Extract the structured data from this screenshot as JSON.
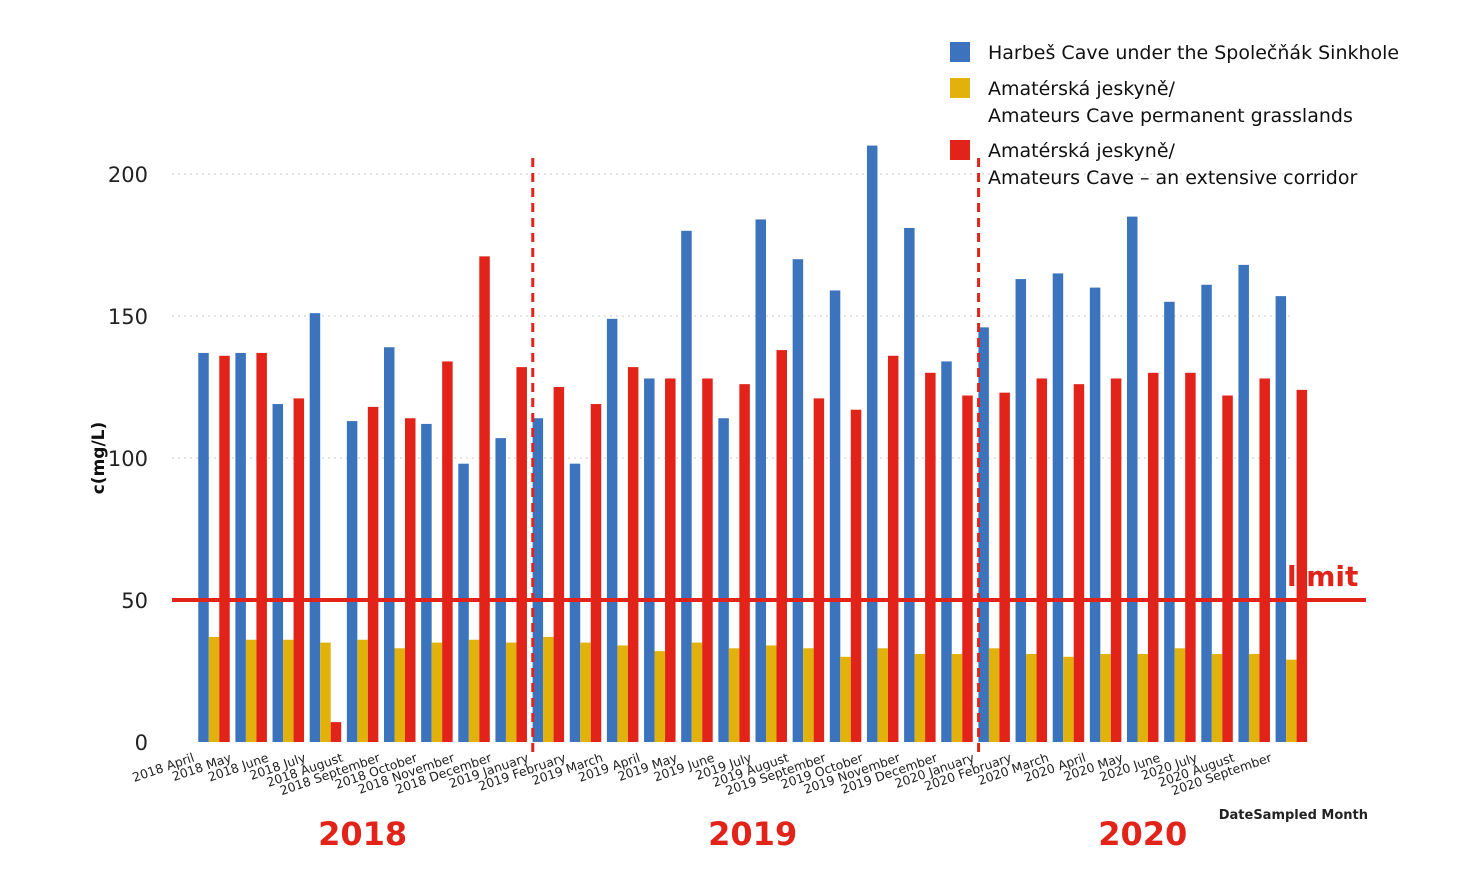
{
  "colors": {
    "harbes": "#3b74bd",
    "amateurs_grass": "#e1b20c",
    "amateurs_corridor": "#e2231a",
    "annotation": "#e2231a",
    "axis_text": "#222222",
    "grid": "#d6d6d6"
  },
  "chart_data": {
    "type": "bar",
    "title": "",
    "xlabel": "DateSampled Month",
    "ylabel": "c(mg/L)",
    "ylim": [
      0,
      215
    ],
    "yticks": [
      0,
      50,
      100,
      150,
      200
    ],
    "grid": true,
    "legend_position": "top-right",
    "categories": [
      "2018 April",
      "2018 May",
      "2018 June",
      "2018 July",
      "2018 August",
      "2018 September",
      "2018 October",
      "2018 November",
      "2018 December",
      "2019 January",
      "2019 February",
      "2019 March",
      "2019 April",
      "2019 May",
      "2019 June",
      "2019 July",
      "2019 August",
      "2019 September",
      "2019 October",
      "2019 November",
      "2019 December",
      "2020 January",
      "2020 February",
      "2020 March",
      "2020 April",
      "2020 May",
      "2020 June",
      "2020 July",
      "2020 August",
      "2020 September"
    ],
    "series": [
      {
        "name": "Harbeš Cave under the Společňák Sinkhole",
        "legend_lines": [
          "Harbeš Cave under the Společňák Sinkhole"
        ],
        "color_key": "harbes",
        "values": [
          137,
          137,
          119,
          151,
          113,
          139,
          112,
          98,
          107,
          114,
          98,
          149,
          128,
          180,
          114,
          184,
          170,
          159,
          210,
          181,
          134,
          146,
          163,
          165,
          160,
          185,
          155,
          161,
          168,
          157
        ]
      },
      {
        "name": "Amatérská jeskyně/ Amateurs Cave permanent grasslands",
        "legend_lines": [
          "Amatérská jeskyně/",
          "Amateurs Cave permanent grasslands"
        ],
        "color_key": "amateurs_grass",
        "values": [
          37,
          36,
          36,
          35,
          36,
          33,
          35,
          36,
          35,
          37,
          35,
          34,
          32,
          35,
          33,
          34,
          33,
          30,
          33,
          31,
          31,
          33,
          31,
          30,
          31,
          31,
          33,
          31,
          31,
          29
        ]
      },
      {
        "name": "Amatérská jeskyně/ Amateurs Cave – an extensive corridor",
        "legend_lines": [
          "Amatérská jeskyně/",
          "Amateurs Cave – an extensive corridor"
        ],
        "color_key": "amateurs_corridor",
        "values": [
          136,
          137,
          121,
          7,
          118,
          114,
          134,
          171,
          132,
          125,
          119,
          132,
          128,
          128,
          126,
          138,
          121,
          117,
          136,
          130,
          122,
          123,
          128,
          126,
          128,
          130,
          130,
          122,
          128,
          124
        ]
      }
    ],
    "annotations": {
      "limit_value": 50,
      "limit_label": "limit",
      "year_dividers_after": [
        "2018 December",
        "2019 December"
      ],
      "year_labels": [
        {
          "text": "2018",
          "categories": [
            "2018 April",
            "2018 December"
          ]
        },
        {
          "text": "2019",
          "categories": [
            "2019 January",
            "2019 December"
          ]
        },
        {
          "text": "2020",
          "categories": [
            "2020 January",
            "2020 September"
          ]
        }
      ]
    }
  }
}
